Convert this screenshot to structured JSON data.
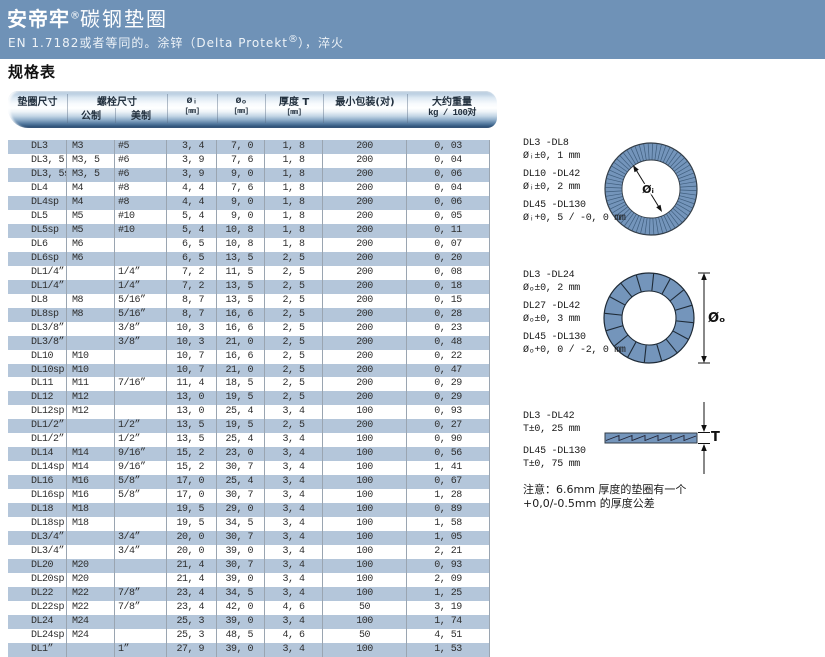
{
  "banner": {
    "brand": "安帝牢",
    "reg": "®",
    "title": "碳钢垫圈",
    "subtitle_pre": "EN 1.7182或者等同的。涂锌（Delta Protekt",
    "subtitle_reg": "®",
    "subtitle_post": "），淬火"
  },
  "section_title": "规格表",
  "colors": {
    "banner_blue": "#6f92b7",
    "row_blue": "#b4c6da",
    "washer_blue": "#7495bb",
    "header_pill_dark": "#1f4067"
  },
  "table": {
    "headers": {
      "washer_size": "垫圈尺寸",
      "bolt_size": "螺栓尺寸",
      "metric": "公制",
      "us": "美制",
      "di_symbol": "øᵢ",
      "di_unit": "[mm]",
      "do_symbol": "øₒ",
      "do_unit": "[mm]",
      "thickness": "厚度 T",
      "thickness_unit": "[mm]",
      "min_pack": "最小包装(对)",
      "weight_line1": "大约重量",
      "weight_line2": "kg / 100对"
    },
    "rows": [
      [
        "DL3",
        "M3",
        "#5",
        "3, 4",
        "7, 0",
        "1, 8",
        "200",
        "0, 03"
      ],
      [
        "DL3, 5",
        "M3, 5",
        "#6",
        "3, 9",
        "7, 6",
        "1, 8",
        "200",
        "0, 04"
      ],
      [
        "DL3, 5sp",
        "M3, 5",
        "#6",
        "3, 9",
        "9, 0",
        "1, 8",
        "200",
        "0, 06"
      ],
      [
        "DL4",
        "M4",
        "#8",
        "4, 4",
        "7, 6",
        "1, 8",
        "200",
        "0, 04"
      ],
      [
        "DL4sp",
        "M4",
        "#8",
        "4, 4",
        "9, 0",
        "1, 8",
        "200",
        "0, 06"
      ],
      [
        "DL5",
        "M5",
        "#10",
        "5, 4",
        "9, 0",
        "1, 8",
        "200",
        "0, 05"
      ],
      [
        "DL5sp",
        "M5",
        "#10",
        "5, 4",
        "10, 8",
        "1, 8",
        "200",
        "0, 11"
      ],
      [
        "DL6",
        "M6",
        "",
        "6, 5",
        "10, 8",
        "1, 8",
        "200",
        "0, 07"
      ],
      [
        "DL6sp",
        "M6",
        "",
        "6, 5",
        "13, 5",
        "2, 5",
        "200",
        "0, 20"
      ],
      [
        "DL1/4”",
        "",
        "1/4”",
        "7, 2",
        "11, 5",
        "2, 5",
        "200",
        "0, 08"
      ],
      [
        "DL1/4” sp",
        "",
        "1/4”",
        "7, 2",
        "13, 5",
        "2, 5",
        "200",
        "0, 18"
      ],
      [
        "DL8",
        "M8",
        "5/16”",
        "8, 7",
        "13, 5",
        "2, 5",
        "200",
        "0, 15"
      ],
      [
        "DL8sp",
        "M8",
        "5/16”",
        "8, 7",
        "16, 6",
        "2, 5",
        "200",
        "0, 28"
      ],
      [
        "DL3/8”",
        "",
        "3/8”",
        "10, 3",
        "16, 6",
        "2, 5",
        "200",
        "0, 23"
      ],
      [
        "DL3/8” sp",
        "",
        "3/8”",
        "10, 3",
        "21, 0",
        "2, 5",
        "200",
        "0, 48"
      ],
      [
        "DL10",
        "M10",
        "",
        "10, 7",
        "16, 6",
        "2, 5",
        "200",
        "0, 22"
      ],
      [
        "DL10sp",
        "M10",
        "",
        "10, 7",
        "21, 0",
        "2, 5",
        "200",
        "0, 47"
      ],
      [
        "DL11",
        "M11",
        "7/16”",
        "11, 4",
        "18, 5",
        "2, 5",
        "200",
        "0, 29"
      ],
      [
        "DL12",
        "M12",
        "",
        "13, 0",
        "19, 5",
        "2, 5",
        "200",
        "0, 29"
      ],
      [
        "DL12sp",
        "M12",
        "",
        "13, 0",
        "25, 4",
        "3, 4",
        "100",
        "0, 93"
      ],
      [
        "DL1/2”",
        "",
        "1/2”",
        "13, 5",
        "19, 5",
        "2, 5",
        "200",
        "0, 27"
      ],
      [
        "DL1/2” sp",
        "",
        "1/2”",
        "13, 5",
        "25, 4",
        "3, 4",
        "100",
        "0, 90"
      ],
      [
        "DL14",
        "M14",
        "9/16”",
        "15, 2",
        "23, 0",
        "3, 4",
        "100",
        "0, 56"
      ],
      [
        "DL14sp",
        "M14",
        "9/16”",
        "15, 2",
        "30, 7",
        "3, 4",
        "100",
        "1, 41"
      ],
      [
        "DL16",
        "M16",
        "5/8”",
        "17, 0",
        "25, 4",
        "3, 4",
        "100",
        "0, 67"
      ],
      [
        "DL16sp",
        "M16",
        "5/8”",
        "17, 0",
        "30, 7",
        "3, 4",
        "100",
        "1, 28"
      ],
      [
        "DL18",
        "M18",
        "",
        "19, 5",
        "29, 0",
        "3, 4",
        "100",
        "0, 89"
      ],
      [
        "DL18sp",
        "M18",
        "",
        "19, 5",
        "34, 5",
        "3, 4",
        "100",
        "1, 58"
      ],
      [
        "DL3/4”",
        "",
        "3/4”",
        "20, 0",
        "30, 7",
        "3, 4",
        "100",
        "1, 05"
      ],
      [
        "DL3/4” sp",
        "",
        "3/4”",
        "20, 0",
        "39, 0",
        "3, 4",
        "100",
        "2, 21"
      ],
      [
        "DL20",
        "M20",
        "",
        "21, 4",
        "30, 7",
        "3, 4",
        "100",
        "0, 93"
      ],
      [
        "DL20sp",
        "M20",
        "",
        "21, 4",
        "39, 0",
        "3, 4",
        "100",
        "2, 09"
      ],
      [
        "DL22",
        "M22",
        "7/8”",
        "23, 4",
        "34, 5",
        "3, 4",
        "100",
        "1, 25"
      ],
      [
        "DL22sp",
        "M22",
        "7/8”",
        "23, 4",
        "42, 0",
        "4, 6",
        "50",
        "3, 19"
      ],
      [
        "DL24",
        "M24",
        "",
        "25, 3",
        "39, 0",
        "3, 4",
        "100",
        "1, 74"
      ],
      [
        "DL24sp",
        "M24",
        "",
        "25, 3",
        "48, 5",
        "4, 6",
        "50",
        "4, 51"
      ],
      [
        "DL1”",
        "",
        "1”",
        "27, 9",
        "39, 0",
        "3, 4",
        "100",
        "1, 53"
      ]
    ]
  },
  "diagrams": {
    "inner": {
      "dim": "Øᵢ",
      "entries": [
        {
          "range": "DL3 -DL8",
          "tol": "Øᵢ±0, 1 mm"
        },
        {
          "range": "DL10 -DL42",
          "tol": "Øᵢ±0, 2 mm"
        },
        {
          "range": "DL45 -DL130",
          "tol": "Øᵢ+0, 5 / -0, 0 mm"
        }
      ]
    },
    "outer": {
      "dim": "Øₒ",
      "entries": [
        {
          "range": "DL3 -DL24",
          "tol": "Øₒ±0, 2 mm"
        },
        {
          "range": "DL27 -DL42",
          "tol": "Øₒ±0, 3 mm"
        },
        {
          "range": "DL45 -DL130",
          "tol": "Øₒ+0, 0 / -2, 0 mm"
        }
      ]
    },
    "thickness": {
      "dim": "T",
      "entries": [
        {
          "range": "DL3 -DL42",
          "tol": "T±0, 25 mm"
        },
        {
          "range": "DL45 -DL130",
          "tol": "T±0, 75 mm"
        }
      ]
    }
  },
  "note": {
    "line1": "注意：6.6mm 厚度的垫圈有一个",
    "line2": "+0,0/-0.5mm 的厚度公差"
  }
}
